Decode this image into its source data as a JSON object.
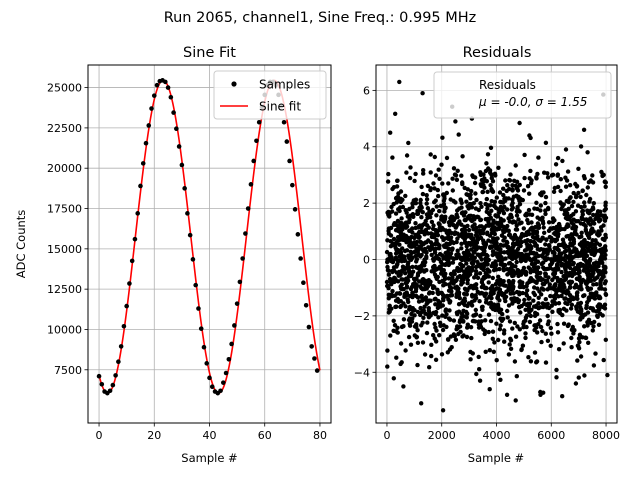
{
  "suptitle": "Run 2065, channel1, Sine Freq.: 0.995 MHz",
  "chart_data": [
    {
      "type": "scatter+line",
      "title": "Sine Fit",
      "xlabel": "Sample #",
      "ylabel": "ADC Counts",
      "xlim": [
        -4,
        84
      ],
      "ylim": [
        4200,
        26400
      ],
      "xticks": [
        0,
        20,
        40,
        60,
        80
      ],
      "yticks": [
        7500,
        10000,
        12500,
        15000,
        17500,
        20000,
        22500,
        25000
      ],
      "grid": true,
      "legend_loc": "upper right",
      "fit": {
        "name": "Sine fit",
        "color": "#ff0000",
        "amplitude": 9700,
        "offset": 15750,
        "period": 40.2,
        "peak_at": 23.2,
        "x_range": [
          0,
          80
        ]
      },
      "series": [
        {
          "name": "Samples",
          "color": "#000000",
          "x": [
            0,
            1,
            2,
            3,
            4,
            5,
            6,
            7,
            8,
            9,
            10,
            11,
            12,
            13,
            14,
            15,
            16,
            17,
            18,
            19,
            20,
            21,
            22,
            23,
            24,
            25,
            26,
            27,
            28,
            29,
            30,
            31,
            32,
            33,
            34,
            35,
            36,
            37,
            38,
            39,
            40,
            41,
            42,
            43,
            44,
            45,
            46,
            47,
            48,
            49,
            50,
            51,
            52,
            53,
            54,
            55,
            56,
            57,
            58,
            59,
            60,
            61,
            62,
            63,
            64,
            65,
            66,
            67,
            68,
            69,
            70,
            71,
            72,
            73,
            74,
            75,
            76,
            77,
            78,
            79
          ],
          "y": [
            7100,
            6600,
            6150,
            6050,
            6200,
            6550,
            7150,
            8000,
            8950,
            10200,
            11450,
            12850,
            14250,
            15600,
            17200,
            18900,
            20300,
            21550,
            22650,
            23700,
            24500,
            25150,
            25400,
            25450,
            25350,
            25000,
            24400,
            23450,
            22450,
            21350,
            20200,
            18750,
            17200,
            15850,
            14350,
            12750,
            11300,
            10050,
            8900,
            7900,
            7000,
            6450,
            6150,
            6050,
            6200,
            6700,
            7300,
            8150,
            9100,
            10250,
            11600,
            12950,
            14400,
            15950,
            17500,
            19000,
            20450,
            21700,
            22850,
            23800,
            24550,
            25150,
            25350,
            25350,
            25150,
            24550,
            23850,
            22850,
            21650,
            20450,
            18950,
            17450,
            15900,
            14400,
            12900,
            11500,
            10150,
            8950,
            8200,
            7450
          ]
        }
      ]
    },
    {
      "type": "scatter",
      "title": "Residuals",
      "xlabel": "Sample #",
      "ylabel": "",
      "xlim": [
        -400,
        8400
      ],
      "ylim": [
        -5.8,
        6.9
      ],
      "xticks": [
        0,
        2000,
        4000,
        6000,
        8000
      ],
      "yticks": [
        -4,
        -2,
        0,
        2,
        4,
        6
      ],
      "grid": true,
      "legend_loc": "upper right",
      "n_points": 8000,
      "series": [
        {
          "name": "Residuals",
          "color": "#000000",
          "mean": -0.0,
          "std": 1.55
        }
      ],
      "legend_text": {
        "line1": "Residuals",
        "line2_mu": "μ = -0.0, ",
        "line2_sigma": "σ = 1.55"
      },
      "outliers": [
        {
          "x": 450,
          "y": 6.3
        },
        {
          "x": 1300,
          "y": 5.9
        },
        {
          "x": 1250,
          "y": -5.1
        },
        {
          "x": 2050,
          "y": -5.35
        },
        {
          "x": 3750,
          "y": -4.6
        },
        {
          "x": 4700,
          "y": -5.0
        },
        {
          "x": 5600,
          "y": -4.7
        },
        {
          "x": 6400,
          "y": -4.85
        },
        {
          "x": 7900,
          "y": 5.85
        },
        {
          "x": 3100,
          "y": 5.0
        },
        {
          "x": 2500,
          "y": 4.9
        },
        {
          "x": 7200,
          "y": 4.6
        },
        {
          "x": 5200,
          "y": 4.4
        },
        {
          "x": 600,
          "y": -4.5
        },
        {
          "x": 6900,
          "y": -4.4
        },
        {
          "x": 120,
          "y": 4.5
        },
        {
          "x": 8050,
          "y": -4.1
        },
        {
          "x": 3400,
          "y": -4.3
        }
      ]
    }
  ]
}
